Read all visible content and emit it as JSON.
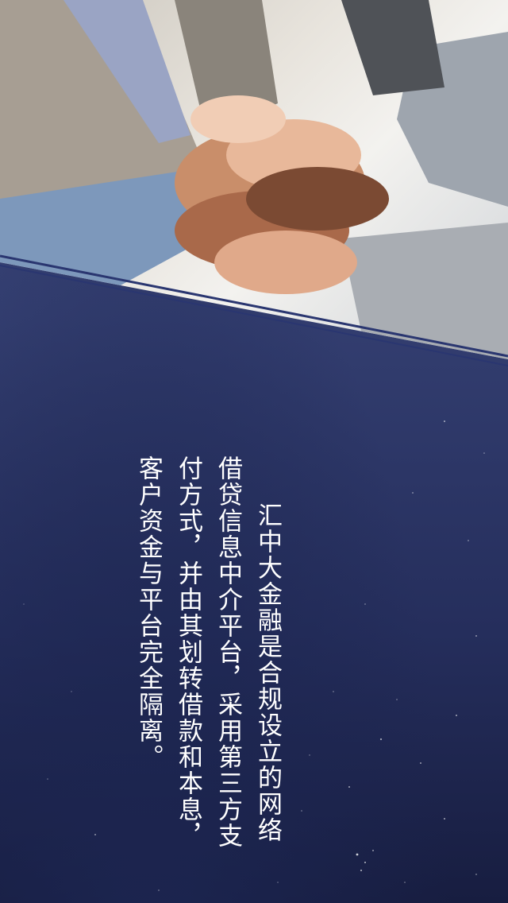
{
  "theme": {
    "background": "#2e3766",
    "text_color": "#ffffff",
    "line_color": "#2a3670"
  },
  "photo": {
    "subject": "stacked-hands-teamwork-photo"
  },
  "body_text": {
    "lines": [
      "汇中大金融是合规设立的网络",
      "借贷信息中介平台，采用第三方支",
      "付方式，并由其划转借款和本息，",
      "客户资金与平台完全隔离。"
    ]
  }
}
